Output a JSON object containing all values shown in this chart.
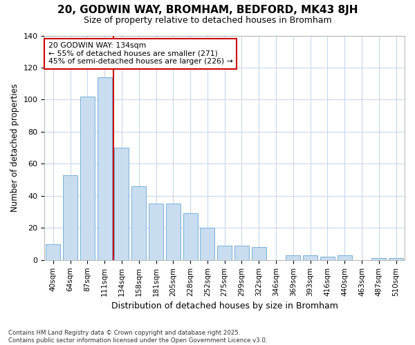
{
  "title": "20, GODWIN WAY, BROMHAM, BEDFORD, MK43 8JH",
  "subtitle": "Size of property relative to detached houses in Bromham",
  "xlabel": "Distribution of detached houses by size in Bromham",
  "ylabel": "Number of detached properties",
  "categories": [
    "40sqm",
    "64sqm",
    "87sqm",
    "111sqm",
    "134sqm",
    "158sqm",
    "181sqm",
    "205sqm",
    "228sqm",
    "252sqm",
    "275sqm",
    "299sqm",
    "322sqm",
    "346sqm",
    "369sqm",
    "393sqm",
    "416sqm",
    "440sqm",
    "463sqm",
    "487sqm",
    "510sqm"
  ],
  "values": [
    10,
    53,
    102,
    114,
    70,
    46,
    35,
    35,
    29,
    20,
    9,
    9,
    8,
    0,
    3,
    3,
    2,
    3,
    0,
    1,
    1
  ],
  "bar_color": "#c8ddf0",
  "bar_edge_color": "#7ab0d8",
  "ref_line_value": 3.5,
  "ref_line_label": "20 GODWIN WAY: 134sqm",
  "annotation_line1": "← 55% of detached houses are smaller (271)",
  "annotation_line2": "45% of semi-detached houses are larger (226) →",
  "annotation_box_facecolor": "#ffffff",
  "annotation_box_edgecolor": "#cc0000",
  "ref_line_color": "#cc0000",
  "ylim": [
    0,
    140
  ],
  "yticks": [
    0,
    20,
    40,
    60,
    80,
    100,
    120,
    140
  ],
  "footer1": "Contains HM Land Registry data © Crown copyright and database right 2025.",
  "footer2": "Contains public sector information licensed under the Open Government Licence v3.0.",
  "grid_color": "#c8d8ec",
  "background_color": "#ffffff",
  "title_fontsize": 11,
  "subtitle_fontsize": 9
}
